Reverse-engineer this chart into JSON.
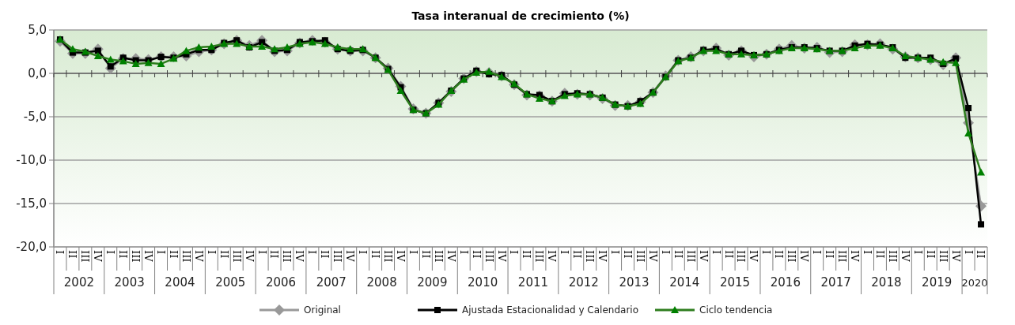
{
  "chart_data": {
    "type": "line",
    "title": "Tasa interanual de crecimiento (%)",
    "categories": [
      "I",
      "II",
      "III",
      "IV",
      "I",
      "II",
      "III",
      "IV",
      "I",
      "II",
      "III",
      "IV",
      "I",
      "II",
      "III",
      "IV",
      "I",
      "II",
      "III",
      "IV",
      "I",
      "II",
      "III",
      "IV",
      "I",
      "II",
      "III",
      "IV",
      "I",
      "II",
      "III",
      "IV",
      "I",
      "II",
      "III",
      "IV",
      "I",
      "II",
      "III",
      "IV",
      "I",
      "II",
      "III",
      "IV",
      "I",
      "II",
      "III",
      "IV",
      "I",
      "II",
      "III",
      "IV",
      "I",
      "II",
      "III",
      "IV",
      "I",
      "II",
      "III",
      "IV",
      "I",
      "II",
      "III",
      "IV",
      "I",
      "II",
      "III",
      "IV",
      "I",
      "II",
      "III",
      "IV",
      "I",
      "II"
    ],
    "annotations": [
      "2002",
      "2003",
      "2004",
      "2005",
      "2006",
      "2007",
      "2008",
      "2009",
      "2010",
      "2011",
      "2012",
      "2013",
      "2014",
      "2015",
      "2016",
      "2017",
      "2018",
      "2019",
      "2020"
    ],
    "series": [
      {
        "name": "Original",
        "color": "#999999",
        "marker": "diamond",
        "values": [
          3.7,
          2.3,
          2.3,
          2.8,
          0.6,
          1.7,
          1.7,
          1.6,
          1.9,
          1.9,
          2.0,
          2.5,
          2.7,
          3.4,
          3.8,
          3.2,
          3.8,
          2.5,
          2.6,
          3.5,
          3.8,
          3.6,
          2.8,
          2.6,
          2.6,
          1.8,
          0.6,
          -1.5,
          -4.1,
          -4.6,
          -3.4,
          -2.1,
          -0.6,
          0.2,
          0.1,
          -0.3,
          -1.3,
          -2.5,
          -2.6,
          -3.2,
          -2.3,
          -2.4,
          -2.5,
          -2.9,
          -3.7,
          -3.7,
          -3.3,
          -2.2,
          -0.3,
          1.5,
          1.9,
          2.6,
          2.9,
          2.1,
          2.6,
          1.9,
          2.2,
          2.8,
          3.2,
          2.9,
          3.0,
          2.4,
          2.5,
          3.3,
          3.3,
          3.4,
          2.8,
          1.9,
          1.8,
          1.6,
          1.0,
          1.8,
          -5.7,
          -15.3
        ]
      },
      {
        "name": "Ajustada Estacionalidad y Calendario",
        "color": "#000000",
        "marker": "square",
        "values": [
          3.9,
          2.4,
          2.4,
          2.6,
          0.8,
          1.8,
          1.5,
          1.5,
          1.9,
          1.8,
          2.2,
          2.7,
          2.7,
          3.5,
          3.8,
          3.0,
          3.6,
          2.6,
          2.7,
          3.6,
          3.7,
          3.8,
          2.8,
          2.6,
          2.7,
          1.8,
          0.5,
          -1.6,
          -4.2,
          -4.6,
          -3.4,
          -2.0,
          -0.6,
          0.3,
          -0.1,
          -0.2,
          -1.3,
          -2.4,
          -2.5,
          -3.2,
          -2.4,
          -2.3,
          -2.4,
          -2.8,
          -3.6,
          -3.8,
          -3.2,
          -2.2,
          -0.4,
          1.5,
          1.8,
          2.7,
          2.8,
          2.2,
          2.6,
          2.1,
          2.2,
          2.7,
          3.0,
          3.0,
          2.9,
          2.6,
          2.6,
          3.2,
          3.4,
          3.3,
          3.0,
          1.8,
          1.8,
          1.8,
          1.1,
          1.7,
          -4.0,
          -17.4
        ]
      },
      {
        "name": "Ciclo tendencia",
        "color": "#2e7d1e",
        "marker": "triangle",
        "values": [
          3.9,
          2.8,
          2.5,
          2.0,
          1.6,
          1.4,
          1.1,
          1.2,
          1.1,
          1.7,
          2.6,
          3.0,
          3.1,
          3.4,
          3.4,
          3.1,
          3.1,
          2.8,
          3.0,
          3.4,
          3.6,
          3.4,
          3.0,
          2.8,
          2.8,
          1.8,
          0.4,
          -2.0,
          -4.2,
          -4.6,
          -3.6,
          -2.0,
          -0.7,
          0.1,
          0.2,
          -0.4,
          -1.2,
          -2.4,
          -2.9,
          -3.2,
          -2.6,
          -2.4,
          -2.4,
          -2.8,
          -3.6,
          -3.8,
          -3.5,
          -2.2,
          -0.4,
          1.4,
          1.8,
          2.6,
          2.6,
          2.2,
          2.2,
          2.1,
          2.2,
          2.6,
          2.9,
          2.9,
          2.8,
          2.6,
          2.6,
          2.9,
          3.2,
          3.2,
          2.9,
          2.0,
          1.8,
          1.6,
          1.3,
          1.2,
          -6.9,
          -11.4
        ]
      }
    ],
    "ylim": [
      -20,
      5
    ],
    "yticks": [
      {
        "value": 5,
        "label": "5,0"
      },
      {
        "value": 0,
        "label": "0,0"
      },
      {
        "value": -5,
        "label": "-5,0"
      },
      {
        "value": -10,
        "label": "-10,0"
      },
      {
        "value": -15,
        "label": "-15,0"
      },
      {
        "value": -20,
        "label": "-20,0"
      }
    ],
    "grid": "y",
    "legend": "bottom"
  }
}
